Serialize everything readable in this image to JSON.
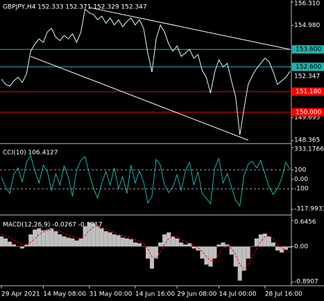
{
  "chart_data": [
    {
      "type": "line",
      "title": "GBPJPY,H4  152.333 152.371 152.329 152.347",
      "xlim": [
        0,
        69
      ],
      "ylim": [
        148.365,
        156.31
      ],
      "yticks": [
        {
          "value": 148.365,
          "label": "148.365"
        },
        {
          "value": 149.695,
          "label": "149.695"
        },
        {
          "value": 154.98,
          "label": "154.980"
        },
        {
          "value": 156.31,
          "label": "156.310"
        }
      ],
      "hlines": [
        {
          "value": 153.6,
          "label": "153.600",
          "color": "#20b2aa"
        },
        {
          "value": 152.6,
          "label": "152.600",
          "color": "#20b2aa"
        },
        {
          "value": 151.18,
          "label": "151.180",
          "color": "#ff0000"
        },
        {
          "value": 150.0,
          "label": "150.000",
          "color": "#ff0000"
        }
      ],
      "trendlines": [
        {
          "x": [
            21,
            69
          ],
          "y": [
            156.0,
            153.6
          ],
          "color": "#ffffff"
        },
        {
          "x": [
            7,
            59
          ],
          "y": [
            153.2,
            148.4
          ],
          "color": "#ffffff"
        }
      ],
      "series": [
        {
          "color": "#e0ffff",
          "values": [
            151.9,
            151.6,
            151.5,
            151.8,
            152.0,
            151.7,
            152.2,
            153.5,
            153.9,
            154.2,
            154.0,
            154.6,
            154.8,
            154.3,
            154.1,
            154.4,
            154.2,
            154.5,
            154.0,
            154.6,
            155.9,
            155.7,
            155.6,
            155.3,
            155.5,
            155.1,
            155.4,
            155.0,
            155.3,
            154.9,
            155.2,
            155.4,
            155.0,
            155.3,
            154.8,
            153.4,
            152.3,
            154.2,
            155.0,
            154.6,
            153.9,
            153.5,
            153.8,
            153.2,
            153.4,
            153.6,
            153.1,
            153.3,
            152.4,
            152.0,
            151.1,
            152.3,
            153.0,
            152.6,
            152.8,
            151.8,
            150.9,
            148.7,
            150.2,
            151.6,
            152.1,
            152.5,
            152.8,
            153.1,
            152.9,
            152.3,
            151.6,
            151.8,
            152.0,
            152.347
          ]
        }
      ]
    },
    {
      "type": "line",
      "title": "CCI(10) 106.4127",
      "xlim": [
        0,
        69
      ],
      "ylim": [
        -317.9931,
        333.1766
      ],
      "yticks": [
        -317.9931,
        -100,
        {
          "value": 0,
          "label": "0.00"
        },
        100,
        333.1766
      ],
      "levels": [
        100,
        -100
      ],
      "series": [
        {
          "color": "#20b2aa",
          "values": [
            20,
            -80,
            -150,
            60,
            120,
            -30,
            180,
            250,
            90,
            -40,
            150,
            80,
            -120,
            60,
            -60,
            140,
            20,
            -180,
            100,
            200,
            240,
            60,
            -90,
            -200,
            -40,
            80,
            -60,
            120,
            -100,
            30,
            -150,
            150,
            -40,
            90,
            -30,
            -250,
            -180,
            210,
            150,
            -60,
            -140,
            -80,
            50,
            -120,
            90,
            180,
            -60,
            80,
            -150,
            -200,
            -260,
            120,
            220,
            -40,
            60,
            -80,
            -220,
            -280,
            40,
            160,
            190,
            120,
            200,
            60,
            -80,
            -160,
            -100,
            10,
            180,
            106.4127
          ]
        }
      ]
    },
    {
      "type": "bar",
      "title": "MACD(12,26,9) -0.0267 -0.1317",
      "xlim": [
        0,
        69
      ],
      "ylim": [
        -0.8907,
        0.6456
      ],
      "yticks": [
        -0.8907,
        {
          "value": 0,
          "label": "0.00"
        },
        0.6456
      ],
      "xticks": [
        {
          "value": 0,
          "label": "29 Apr 2021"
        },
        {
          "value": 10,
          "label": "14 May 08:00"
        },
        {
          "value": 21,
          "label": "31 May 00:00"
        },
        {
          "value": 32,
          "label": "14 Jun 16:00"
        },
        {
          "value": 42,
          "label": "29 Jun 08:00"
        },
        {
          "value": 52,
          "label": "14 Jul 00:00"
        },
        {
          "value": 63,
          "label": "28 Jul 16:00"
        }
      ],
      "series": [
        {
          "type": "bar",
          "color": "#c0c0c0",
          "values": [
            0.25,
            0.2,
            0.12,
            0.05,
            0.0,
            -0.05,
            0.05,
            0.3,
            0.42,
            0.45,
            0.4,
            0.42,
            0.45,
            0.38,
            0.3,
            0.25,
            0.22,
            0.2,
            0.15,
            0.2,
            0.5,
            0.6,
            0.58,
            0.5,
            0.45,
            0.38,
            0.35,
            0.3,
            0.28,
            0.22,
            0.2,
            0.18,
            0.1,
            0.08,
            0.0,
            -0.3,
            -0.55,
            -0.3,
            0.1,
            0.3,
            0.35,
            0.25,
            0.2,
            0.1,
            0.05,
            0.08,
            -0.05,
            -0.1,
            -0.3,
            -0.45,
            -0.5,
            -0.3,
            0.05,
            0.1,
            0.05,
            -0.2,
            -0.5,
            -0.85,
            -0.6,
            -0.3,
            0.0,
            0.2,
            0.3,
            0.32,
            0.25,
            0.1,
            -0.1,
            -0.15,
            -0.08,
            -0.0267
          ]
        },
        {
          "type": "line",
          "color": "#ff0000",
          "dashed": true,
          "values": [
            0.3,
            0.27,
            0.22,
            0.16,
            0.1,
            0.05,
            0.03,
            0.1,
            0.2,
            0.3,
            0.36,
            0.4,
            0.42,
            0.42,
            0.38,
            0.33,
            0.28,
            0.25,
            0.21,
            0.2,
            0.28,
            0.4,
            0.48,
            0.5,
            0.48,
            0.43,
            0.39,
            0.35,
            0.31,
            0.27,
            0.24,
            0.21,
            0.17,
            0.13,
            0.08,
            -0.05,
            -0.25,
            -0.3,
            -0.15,
            0.05,
            0.2,
            0.25,
            0.24,
            0.18,
            0.12,
            0.09,
            0.03,
            -0.03,
            -0.13,
            -0.25,
            -0.35,
            -0.35,
            -0.2,
            -0.05,
            0.02,
            -0.05,
            -0.2,
            -0.45,
            -0.55,
            -0.45,
            -0.25,
            -0.05,
            0.12,
            0.24,
            0.26,
            0.2,
            0.06,
            -0.04,
            -0.08,
            -0.1317
          ]
        }
      ]
    }
  ]
}
